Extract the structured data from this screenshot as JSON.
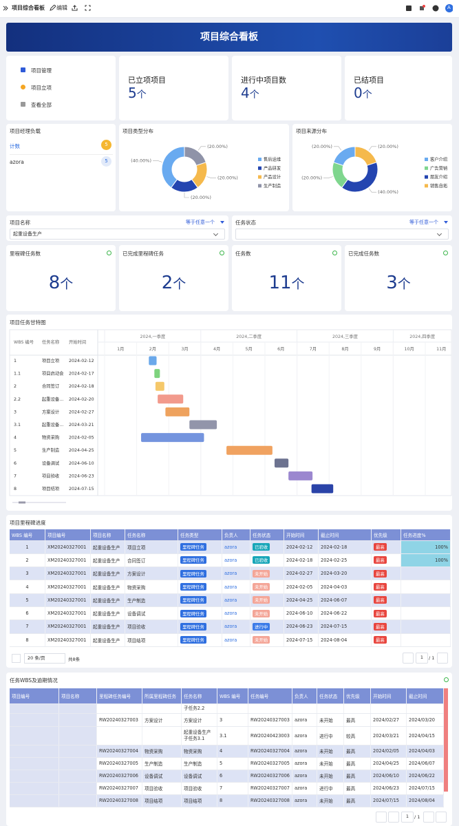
{
  "topbar": {
    "title": "项目综合看板",
    "edit": "编辑",
    "avatar": "A"
  },
  "banner": {
    "title": "项目综合看板"
  },
  "shortcuts": [
    "项目管理",
    "项目立项",
    "查看全部"
  ],
  "project_stats": [
    {
      "label": "已立项项目",
      "value": 5,
      "unit": "个"
    },
    {
      "label": "进行中项目数",
      "value": 4,
      "unit": "个"
    },
    {
      "label": "已结项目",
      "value": 0,
      "unit": "个"
    }
  ],
  "manager_load": {
    "title": "项目经理负载",
    "rows": [
      {
        "name": "计数",
        "value": 5
      },
      {
        "name": "azora",
        "value": 5
      }
    ]
  },
  "chart_data": [
    {
      "type": "pie",
      "title": "项目类型分布",
      "categories": [
        "售后运维",
        "产品研发",
        "产品设计",
        "生产制造"
      ],
      "values": [
        40,
        20,
        20,
        20
      ],
      "value_labels": [
        "(40.00%)",
        "(20.00%)",
        "(20.00%)",
        "(20.00%)"
      ],
      "colors": [
        "#69aaf0",
        "#2445b0",
        "#f5b94c",
        "#8f93a8"
      ]
    },
    {
      "type": "pie",
      "title": "项目来源分布",
      "categories": [
        "客户介绍",
        "广告营销",
        "朋友介绍",
        "销售自拓"
      ],
      "values": [
        20,
        20,
        40,
        20
      ],
      "value_labels": [
        "(20.00%)",
        "(20.00%)",
        "(40.00%)",
        "(20.00%)"
      ],
      "colors": [
        "#69aaf0",
        "#7fd68e",
        "#2445b0",
        "#f5b94c"
      ]
    }
  ],
  "filters": [
    {
      "label": "项目名称",
      "operator": "等于任意一个",
      "value": "起重设备生产"
    },
    {
      "label": "任务状态",
      "operator": "等于任意一个",
      "value": null
    }
  ],
  "task_stats": [
    {
      "label": "里程碑任务数",
      "value": 8,
      "unit": "个"
    },
    {
      "label": "已完成里程碑任务",
      "value": 2,
      "unit": "个"
    },
    {
      "label": "任务数",
      "value": 11,
      "unit": "个"
    },
    {
      "label": "已完成任务数",
      "value": 3,
      "unit": "个"
    }
  ],
  "gantt": {
    "title": "项目任务甘特图",
    "columns": [
      "WBS 编号",
      "任务名称",
      "开始时间"
    ],
    "quarters": [
      "2024,一季度",
      "2024,二季度",
      "2024,三季度",
      "2024,四季度"
    ],
    "months": [
      "1月",
      "2月",
      "3月",
      "4月",
      "5月",
      "6月",
      "7月",
      "8月",
      "9月",
      "10月",
      "11月"
    ],
    "rows": [
      {
        "wbs": "1",
        "name": "项目立项",
        "start": "2024-02-12",
        "end": "2024-02-18",
        "color": "#6aa8ea"
      },
      {
        "wbs": "1.1",
        "name": "项目启动会",
        "start": "2024-02-17",
        "end": "2024-02-21",
        "color": "#7ed37e"
      },
      {
        "wbs": "2",
        "name": "合同签订",
        "start": "2024-02-18",
        "end": "2024-02-25",
        "color": "#f5c86a"
      },
      {
        "wbs": "2.2",
        "name": "起重设备...",
        "start": "2024-02-20",
        "end": "2024-03-14",
        "color": "#f29a8c"
      },
      {
        "wbs": "3",
        "name": "方案设计",
        "start": "2024-02-27",
        "end": "2024-03-20",
        "color": "#eea25e"
      },
      {
        "wbs": "3.1",
        "name": "起重设备...",
        "start": "2024-03-21",
        "end": "2024-04-15",
        "color": "#9295aa"
      },
      {
        "wbs": "4",
        "name": "物资采购",
        "start": "2024-02-05",
        "end": "2024-04-03",
        "color": "#7494de"
      },
      {
        "wbs": "5",
        "name": "生产制造",
        "start": "2024-04-25",
        "end": "2024-06-07",
        "color": "#f0a260"
      },
      {
        "wbs": "6",
        "name": "设备调试",
        "start": "2024-06-10",
        "end": "2024-06-22",
        "color": "#6d7390"
      },
      {
        "wbs": "7",
        "name": "项目验收",
        "start": "2024-06-23",
        "end": "2024-07-15",
        "color": "#9b87cf"
      },
      {
        "wbs": "8",
        "name": "项目结项",
        "start": "2024-07-15",
        "end": "2024-08-04",
        "color": "#2a43a8"
      }
    ]
  },
  "milestones": {
    "title": "项目里程碑进度",
    "columns": [
      "WBS 编号",
      "项目编号",
      "项目名称",
      "任务名称",
      "任务类型",
      "负责人",
      "任务状态",
      "开始时间",
      "截止时间",
      "优先级",
      "任务进度%"
    ],
    "status_colors": {
      "已验收": "#17a6b8",
      "未开始": "#f4a597",
      "进行中": "#3b7be8"
    },
    "rows": [
      [
        1,
        "XM20240327001",
        "起重设备生产",
        "项目立项",
        "里程碑任务",
        "azora",
        "已验收",
        "2024-02-12",
        "2024-02-18",
        "最高",
        "100%"
      ],
      [
        2,
        "XM20240327001",
        "起重设备生产",
        "合同签订",
        "里程碑任务",
        "azora",
        "已验收",
        "2024-02-18",
        "2024-02-25",
        "最高",
        "100%"
      ],
      [
        3,
        "XM20240327001",
        "起重设备生产",
        "方案设计",
        "里程碑任务",
        "azora",
        "未开始",
        "2024-02-27",
        "2024-03-20",
        "最高",
        null
      ],
      [
        4,
        "XM20240327001",
        "起重设备生产",
        "物资采购",
        "里程碑任务",
        "azora",
        "未开始",
        "2024-02-05",
        "2024-04-03",
        "最高",
        null
      ],
      [
        5,
        "XM20240327001",
        "起重设备生产",
        "生产制造",
        "里程碑任务",
        "azora",
        "未开始",
        "2024-04-25",
        "2024-06-07",
        "最高",
        null
      ],
      [
        6,
        "XM20240327001",
        "起重设备生产",
        "设备调试",
        "里程碑任务",
        "azora",
        "未开始",
        "2024-06-10",
        "2024-06-22",
        "最高",
        null
      ],
      [
        7,
        "XM20240327001",
        "起重设备生产",
        "项目验收",
        "里程碑任务",
        "azora",
        "进行中",
        "2024-06-23",
        "2024-07-15",
        "最高",
        null
      ],
      [
        8,
        "XM20240327001",
        "起重设备生产",
        "项目结项",
        "里程碑任务",
        "azora",
        "未开始",
        "2024-07-15",
        "2024-08-04",
        "最高",
        null
      ]
    ],
    "page_size": "20 条/页",
    "total": "共8条",
    "page": 1,
    "pages": "/ 1"
  },
  "wbs": {
    "title": "任务WBS及逾期情况",
    "columns": [
      "项目编号",
      "项目名称",
      "里程碑任务编号",
      "所属里程碑任务",
      "任务名称",
      "WBS 编号",
      "任务编号",
      "负责人",
      "任务状态",
      "优先级",
      "开始时间",
      "截止时间"
    ],
    "rows": [
      [
        null,
        null,
        null,
        null,
        "子任务2.2",
        null,
        null,
        null,
        null,
        null,
        null,
        null
      ],
      [
        null,
        null,
        "RW20240327003",
        "方案设计",
        "方案设计",
        "3",
        "RW20240327003",
        "azora",
        "未开始",
        "最高",
        "2024/02/27",
        "2024/03/20"
      ],
      [
        null,
        null,
        null,
        null,
        "起重设备生产子任务3.1",
        "3.1",
        "RW20240423003",
        "azora",
        "进行中",
        "较高",
        "2024/03/21",
        "2024/04/15"
      ],
      [
        null,
        null,
        "RW20240327004",
        "物资采购",
        "物资采购",
        "4",
        "RW20240327004",
        "azora",
        "未开始",
        "最高",
        "2024/02/05",
        "2024/04/03"
      ],
      [
        null,
        null,
        "RW20240327005",
        "生产制造",
        "生产制造",
        "5",
        "RW20240327005",
        "azora",
        "未开始",
        "最高",
        "2024/04/25",
        "2024/06/07"
      ],
      [
        null,
        null,
        "RW20240327006",
        "设备调试",
        "设备调试",
        "6",
        "RW20240327006",
        "azora",
        "未开始",
        "最高",
        "2024/06/10",
        "2024/06/22"
      ],
      [
        null,
        null,
        "RW20240327007",
        "项目验收",
        "项目验收",
        "7",
        "RW20240327007",
        "azora",
        "进行中",
        "最高",
        "2024/06/23",
        "2024/07/15"
      ],
      [
        null,
        null,
        "RW20240327008",
        "项目结项",
        "项目结项",
        "8",
        "RW20240327008",
        "azora",
        "未开始",
        "最高",
        "2024/07/15",
        "2024/08/04"
      ]
    ],
    "page": 1,
    "pages": "/ 1"
  }
}
